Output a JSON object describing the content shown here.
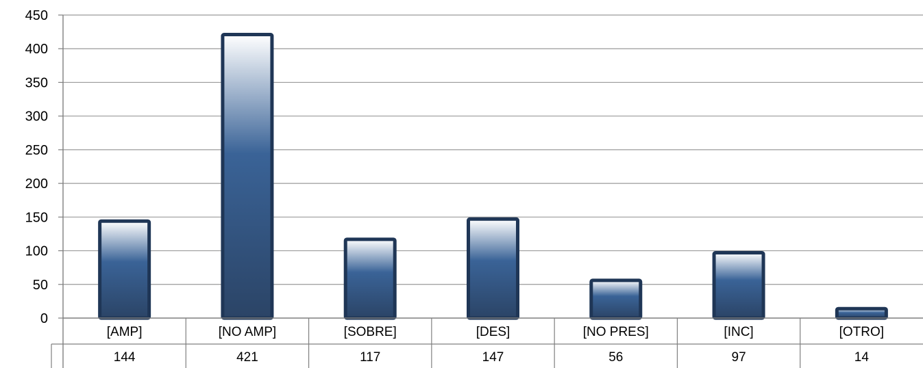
{
  "chart_data": {
    "type": "bar",
    "categories": [
      "[AMP]",
      "[NO AMP]",
      "[SOBRE]",
      "[DES]",
      "[NO PRES]",
      "[INC]",
      "[OTRO]"
    ],
    "values": [
      144,
      421,
      117,
      147,
      56,
      97,
      14
    ],
    "value_labels": [
      "144",
      "421",
      "117",
      "147",
      "56",
      "97",
      "14"
    ],
    "y_ticks": [
      "0",
      "50",
      "100",
      "150",
      "200",
      "250",
      "300",
      "350",
      "400",
      "450"
    ],
    "ylim": [
      0,
      450
    ],
    "grid": true,
    "data_table": true,
    "colors": {
      "bar_dark": "#2b4466",
      "bar_mid": "#3a6397",
      "bar_light": "#ffffff",
      "bar_outline": "#1f3656",
      "grid": "#9a9a9a",
      "axis": "#7f7f7f"
    }
  }
}
